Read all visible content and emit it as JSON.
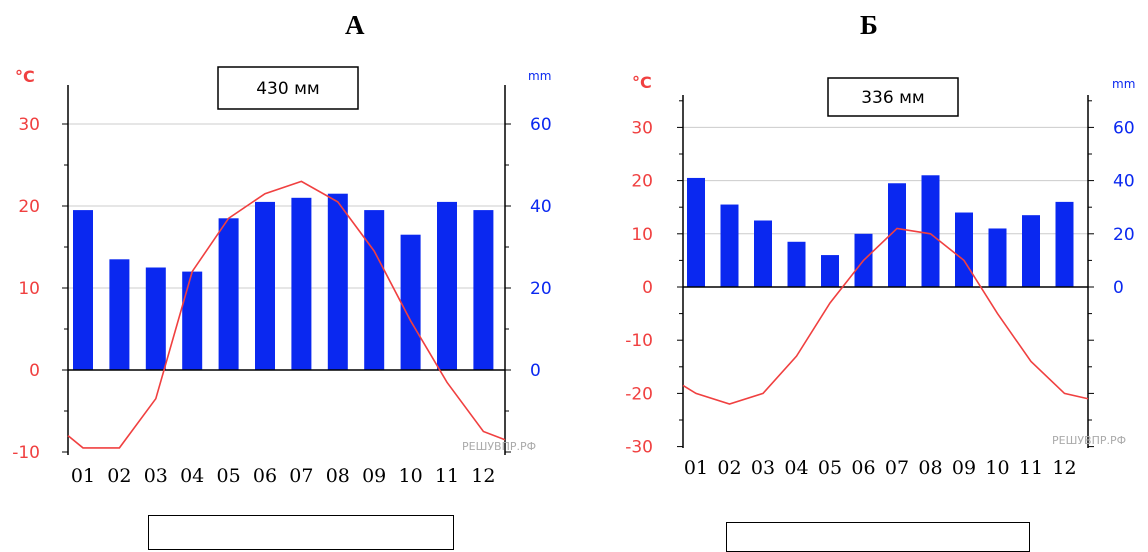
{
  "panels": {
    "a": {
      "letter": "А"
    },
    "b": {
      "letter": "Б"
    }
  },
  "colors": {
    "temp": "#f04040",
    "precip": "#0a28f0",
    "bar": "#0a28f0"
  },
  "chart_data": [
    {
      "type": "bar",
      "total_label": "430 мм",
      "left_unit": "°C",
      "right_unit": "mm",
      "watermark": "РЕШУВПР.РФ",
      "categories": [
        "01",
        "02",
        "03",
        "04",
        "05",
        "06",
        "07",
        "08",
        "09",
        "10",
        "11",
        "12"
      ],
      "temp_ticks": [
        30,
        20,
        10,
        0,
        -10
      ],
      "precip_ticks": [
        60,
        40,
        20,
        0
      ],
      "ylim_temp": [
        -10,
        35
      ],
      "ylim_precip": [
        -20,
        70
      ],
      "series": [
        {
          "name": "",
          "kind": "bar",
          "axis": "precip",
          "values": [
            39,
            27,
            25,
            24,
            37,
            41,
            42,
            43,
            39,
            33,
            41,
            39
          ]
        },
        {
          "name": "",
          "kind": "line",
          "axis": "temp",
          "values": [
            -9.5,
            -9.5,
            -3.5,
            12,
            18.5,
            21.5,
            23,
            20.5,
            14.5,
            6,
            -1.5,
            -7.5
          ]
        }
      ]
    },
    {
      "type": "bar",
      "total_label": "336 мм",
      "left_unit": "°C",
      "right_unit": "mm",
      "watermark": "РЕШУВПР.РФ",
      "categories": [
        "01",
        "02",
        "03",
        "04",
        "05",
        "06",
        "07",
        "08",
        "09",
        "10",
        "11",
        "12"
      ],
      "temp_ticks": [
        30,
        20,
        10,
        0,
        -10,
        -20,
        -30
      ],
      "precip_ticks": [
        60,
        40,
        20,
        0
      ],
      "ylim_temp": [
        -30,
        35
      ],
      "ylim_precip": [
        -60,
        70
      ],
      "series": [
        {
          "name": "",
          "kind": "bar",
          "axis": "precip",
          "values": [
            41,
            31,
            25,
            17,
            12,
            20,
            39,
            42,
            28,
            22,
            27,
            32
          ]
        },
        {
          "name": "",
          "kind": "line",
          "axis": "temp",
          "values": [
            -20,
            -22,
            -20,
            -13,
            -3,
            5,
            11,
            10,
            5,
            -5,
            -14,
            -20
          ]
        }
      ]
    }
  ]
}
